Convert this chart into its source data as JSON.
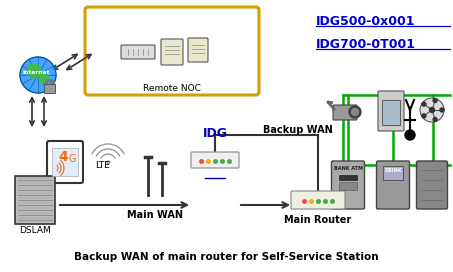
{
  "title": "Backup WAN of main router for Self-Service Station",
  "link1": "IDG500-0x001",
  "link2": "IDG700-0T001",
  "label_internet": "Internet",
  "label_remote_noc": "Remote NOC",
  "label_lte": "LTE",
  "label_idg": "IDG",
  "label_dslam": "DSLAM",
  "label_backup_wan": "Backup WAN",
  "label_main_wan": "Main WAN",
  "label_main_router": "Main Router",
  "link_color": "#0000CC",
  "title_color": "#000000",
  "noc_box_color": "#D4A000",
  "arrow_color": "#000000",
  "green_line_color": "#00AA00",
  "bg_color": "#ffffff"
}
